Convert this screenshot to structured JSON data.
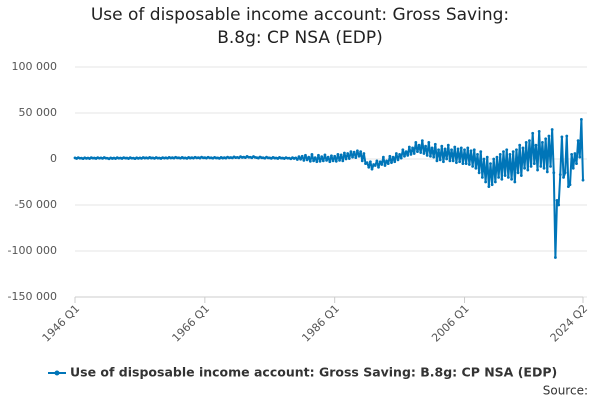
{
  "chart_data": {
    "type": "line",
    "title": "Use of disposable income account: Gross Saving: B.8g: CP NSA (EDP)",
    "source": "Source:",
    "categories": [
      "1946 Q1",
      null,
      null,
      null,
      null,
      null,
      null,
      null,
      null,
      null,
      null,
      null,
      null,
      null,
      null,
      null,
      null,
      null,
      null,
      null,
      null,
      null,
      null,
      null,
      null,
      null,
      null,
      null,
      null,
      null,
      null,
      null,
      null,
      null,
      null,
      null,
      null,
      null,
      null,
      null,
      null,
      null,
      null,
      null,
      null,
      null,
      null,
      null,
      null,
      null,
      null,
      null,
      null,
      null,
      null,
      null,
      null,
      null,
      null,
      null,
      null,
      null,
      null,
      null,
      null,
      null,
      null,
      null,
      null,
      null,
      null,
      null,
      null,
      null,
      null,
      null,
      null,
      null,
      null,
      null,
      "1966 Q1",
      null,
      null,
      null,
      null,
      null,
      null,
      null,
      null,
      null,
      null,
      null,
      null,
      null,
      null,
      null,
      null,
      null,
      null,
      null,
      null,
      null,
      null,
      null,
      null,
      null,
      null,
      null,
      null,
      null,
      null,
      null,
      null,
      null,
      null,
      null,
      null,
      null,
      null,
      null,
      null,
      null,
      null,
      null,
      null,
      null,
      null,
      null,
      null,
      null,
      null,
      null,
      null,
      null,
      null,
      null,
      null,
      null,
      null,
      null,
      null,
      null,
      null,
      null,
      null,
      null,
      null,
      null,
      null,
      null,
      null,
      null,
      null,
      null,
      null,
      null,
      null,
      null,
      null,
      null,
      "1986 Q1",
      null,
      null,
      null,
      null,
      null,
      null,
      null,
      null,
      null,
      null,
      null,
      null,
      null,
      null,
      null,
      null,
      null,
      null,
      null,
      null,
      null,
      null,
      null,
      null,
      null,
      null,
      null,
      null,
      null,
      null,
      null,
      null,
      null,
      null,
      null,
      null,
      null,
      null,
      null,
      null,
      null,
      null,
      null,
      null,
      null,
      null,
      null,
      null,
      null,
      null,
      null,
      null,
      null,
      null,
      null,
      null,
      null,
      null,
      null,
      null,
      null,
      null,
      null,
      null,
      null,
      null,
      null,
      null,
      null,
      null,
      null,
      null,
      null,
      null,
      null,
      null,
      null,
      null,
      null,
      "2006 Q1",
      null,
      null,
      null,
      null,
      null,
      null,
      null,
      null,
      null,
      null,
      null,
      null,
      null,
      null,
      null,
      null,
      null,
      null,
      null,
      null,
      null,
      null,
      null,
      null,
      null,
      null,
      null,
      null,
      null,
      null,
      null,
      null,
      null,
      null,
      null,
      null,
      null,
      null,
      null,
      null,
      null,
      null,
      null,
      null,
      null,
      null,
      null,
      null,
      null,
      null,
      null,
      null,
      null,
      null,
      null,
      null,
      null,
      null,
      null,
      null,
      null,
      null,
      null,
      null,
      null,
      null,
      null,
      null,
      null,
      null,
      null,
      null,
      "2024 Q2"
    ],
    "series": [
      {
        "name": "Use of disposable income account: Gross Saving: B.8g: CP NSA (EDP)",
        "color": "#0075b8",
        "values": [
          1200,
          600,
          1500,
          800,
          900,
          400,
          1300,
          700,
          1100,
          500,
          1400,
          900,
          1000,
          600,
          1500,
          800,
          1200,
          700,
          1600,
          900,
          800,
          300,
          1200,
          600,
          1000,
          500,
          1400,
          800,
          1100,
          600,
          1500,
          900,
          1000,
          500,
          1400,
          800,
          900,
          400,
          1300,
          700,
          1200,
          700,
          1600,
          1000,
          1300,
          800,
          1700,
          1000,
          1200,
          700,
          1600,
          900,
          1100,
          600,
          1500,
          900,
          1300,
          800,
          1800,
          1100,
          1400,
          900,
          1900,
          1200,
          1300,
          800,
          1700,
          1000,
          1200,
          700,
          1700,
          1000,
          1400,
          900,
          1900,
          1200,
          1500,
          1000,
          2000,
          1300,
          1400,
          900,
          1900,
          1200,
          1300,
          800,
          1800,
          1100,
          1200,
          700,
          1700,
          1000,
          1400,
          1000,
          2000,
          1300,
          1600,
          1200,
          2300,
          1500,
          1800,
          1300,
          2500,
          1700,
          2000,
          1500,
          2800,
          1900,
          1900,
          1400,
          2700,
          1800,
          1500,
          1000,
          2200,
          1400,
          1300,
          800,
          2000,
          1200,
          1200,
          700,
          1800,
          1000,
          1100,
          600,
          1700,
          900,
          1000,
          500,
          1500,
          800,
          900,
          300,
          1400,
          600,
          1200,
          -500,
          2500,
          -300,
          3000,
          -1500,
          4000,
          -1000,
          2000,
          -2500,
          5000,
          -2000,
          1500,
          -3000,
          4000,
          -2500,
          2500,
          -2000,
          4500,
          -1500,
          2000,
          -3000,
          3500,
          -2000,
          3000,
          -2500,
          5000,
          -1500,
          4500,
          -2000,
          6500,
          0,
          6000,
          500,
          8000,
          2000,
          7500,
          1500,
          9000,
          3000,
          8000,
          -2000,
          6000,
          -5000,
          -4000,
          -9000,
          -3000,
          -11000,
          -6000,
          -7000,
          -2000,
          -9000,
          -3000,
          -6000,
          2000,
          -7000,
          -2000,
          -5000,
          3000,
          -4000,
          2000,
          -3000,
          6000,
          -1000,
          5000,
          1000,
          10000,
          3000,
          8000,
          4000,
          13000,
          5000,
          12000,
          6000,
          18000,
          8000,
          15000,
          7000,
          20000,
          6000,
          14000,
          4000,
          18000,
          3000,
          12000,
          2000,
          16000,
          -2000,
          10000,
          -1000,
          14000,
          -3000,
          11000,
          0,
          15000,
          -2000,
          10000,
          -2000,
          13000,
          -4000,
          11000,
          -3000,
          12000,
          -5000,
          10000,
          -5000,
          12000,
          -6000,
          9000,
          -8000,
          10000,
          -10000,
          5000,
          -15000,
          8000,
          -20000,
          0,
          -25000,
          2000,
          -30000,
          -5000,
          -28000,
          0,
          -25000,
          2000,
          -20000,
          5000,
          -22000,
          8000,
          -18000,
          10000,
          -20000,
          5000,
          -22000,
          8000,
          -25000,
          10000,
          -15000,
          15000,
          -18000,
          12000,
          -10000,
          18000,
          -12000,
          20000,
          -8000,
          28000,
          -5000,
          15000,
          -12000,
          30000,
          -8000,
          18000,
          -10000,
          22000,
          -14000,
          25000,
          -8000,
          32000,
          -15000,
          -107000,
          -45000,
          -50000,
          -17000,
          24000,
          -20000,
          -15000,
          25000,
          -30000,
          -28000,
          5000,
          -10000,
          6000,
          -5000,
          20000,
          2000,
          43000,
          -23000
        ]
      }
    ],
    "ylim": [
      -150000,
      100000
    ],
    "yticks": [
      {
        "value": -150000,
        "label": "-150 000"
      },
      {
        "value": -100000,
        "label": "-100 000"
      },
      {
        "value": -50000,
        "label": "-50 000"
      },
      0,
      {
        "value": 50000,
        "label": "50 000"
      },
      {
        "value": 100000,
        "label": "100 000"
      }
    ],
    "grid": true
  }
}
